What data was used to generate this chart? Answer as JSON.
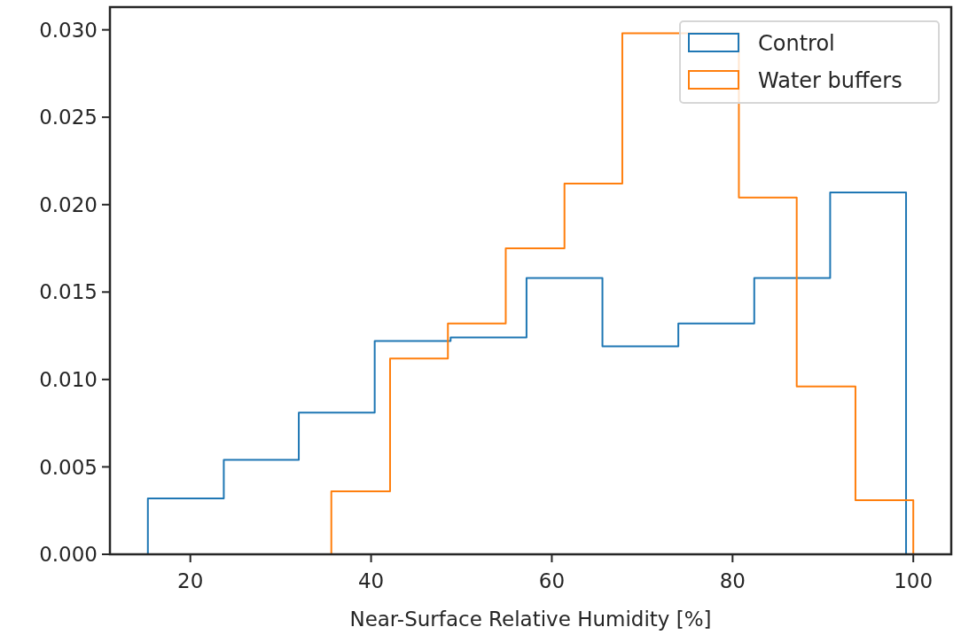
{
  "chart_data": {
    "type": "histogram",
    "xlabel": "Near-Surface Relative Humidity [%]",
    "xlim": [
      11.1,
      104.2
    ],
    "xticks": [
      20,
      40,
      60,
      80,
      100
    ],
    "ylim": [
      0,
      0.0313
    ],
    "yticks": [
      {
        "value": 0,
        "label": "0.000"
      },
      {
        "value": 0.005,
        "label": "0.005"
      },
      {
        "value": 0.01,
        "label": "0.010"
      },
      {
        "value": 0.015,
        "label": "0.015"
      },
      {
        "value": 0.02,
        "label": "0.020"
      },
      {
        "value": 0.025,
        "label": "0.025"
      },
      {
        "value": 0.03,
        "label": "0.030"
      }
    ],
    "legend": "top right",
    "bins": [
      15.3,
      23.7,
      32.0,
      40.4,
      48.8,
      57.2,
      65.6,
      74.0,
      82.4,
      90.8,
      99.2
    ],
    "series": [
      {
        "name": "Control",
        "color": "#1f77b4",
        "values": [
          0.0032,
          0.0054,
          0.0081,
          0.0122,
          0.0124,
          0.0158,
          0.0119,
          0.0132,
          0.0158,
          0.0207
        ]
      },
      {
        "name": "Water buffers",
        "color": "#ff7f0e",
        "bins": [
          35.6,
          42.1,
          48.5,
          54.9,
          61.4,
          67.8,
          74.2,
          80.7,
          87.1,
          93.6,
          100.0
        ],
        "values": [
          0.0036,
          0.0112,
          0.0132,
          0.0175,
          0.0212,
          0.0298,
          0.0298,
          0.0204,
          0.0096,
          0.0031
        ]
      }
    ]
  }
}
